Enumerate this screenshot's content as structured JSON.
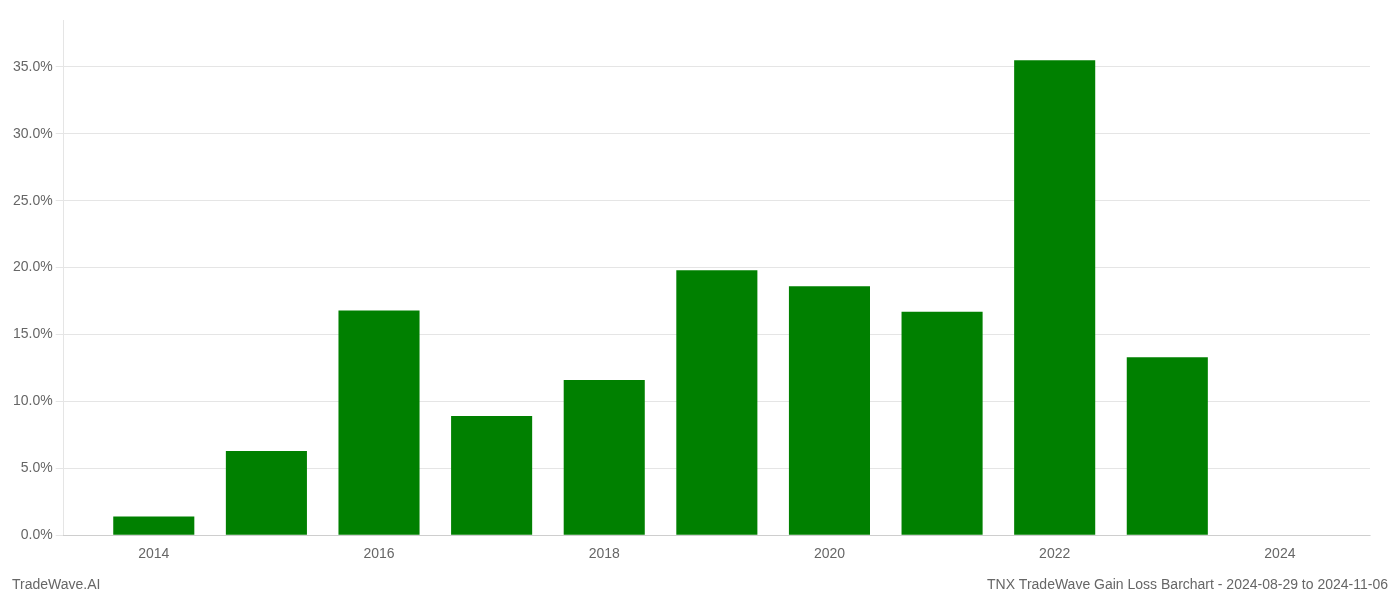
{
  "chart_data": {
    "type": "bar",
    "x": [
      2014,
      2015,
      2016,
      2017,
      2018,
      2019,
      2020,
      2021,
      2022,
      2023
    ],
    "values": [
      0.014,
      0.063,
      0.168,
      0.089,
      0.116,
      0.198,
      0.186,
      0.167,
      0.355,
      0.133
    ],
    "color": "#008000",
    "xlim": [
      2013.2,
      2024.8
    ],
    "xticks": [
      2014,
      2016,
      2018,
      2020,
      2022,
      2024
    ],
    "ylim": [
      0.0,
      0.385
    ],
    "yticks": [
      {
        "value": 0.0,
        "label": "0.0%"
      },
      {
        "value": 0.05,
        "label": "5.0%"
      },
      {
        "value": 0.1,
        "label": "10.0%"
      },
      {
        "value": 0.15,
        "label": "15.0%"
      },
      {
        "value": 0.2,
        "label": "20.0%"
      },
      {
        "value": 0.25,
        "label": "25.0%"
      },
      {
        "value": 0.3,
        "label": "30.0%"
      },
      {
        "value": 0.35,
        "label": "35.0%"
      }
    ],
    "grid": "y",
    "annotations": [
      "TradeWave.AI",
      "TNX TradeWave Gain Loss Barchart - 2024-08-29 to 2024-11-06"
    ]
  }
}
